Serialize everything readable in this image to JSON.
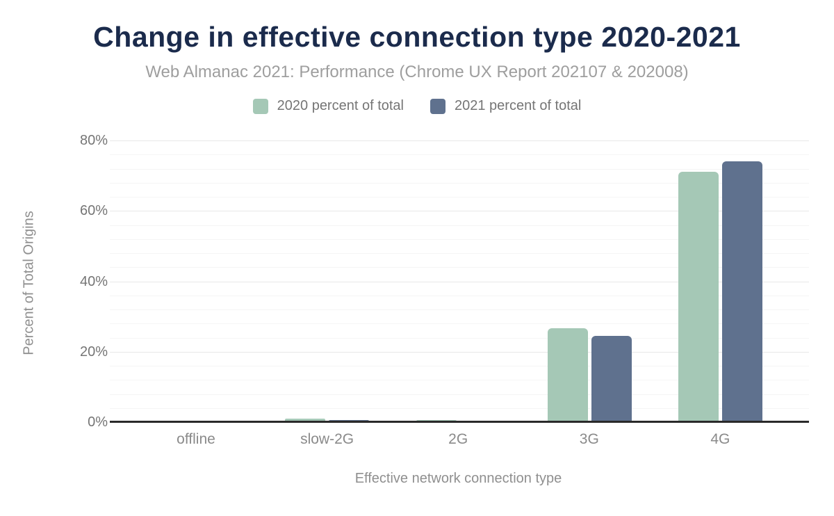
{
  "chart_data": {
    "type": "bar",
    "title": "Change in effective connection type 2020-2021",
    "subtitle": "Web Almanac 2021: Performance (Chrome UX Report 202107 & 202008)",
    "xlabel": "Effective network connection type",
    "ylabel": "Percent of Total Origins",
    "categories": [
      "offline",
      "slow-2G",
      "2G",
      "3G",
      "4G"
    ],
    "series": [
      {
        "name": "2020 percent of total",
        "color": "#a5c8b6",
        "values": [
          0,
          1.0,
          0.5,
          26.7,
          71.2
        ]
      },
      {
        "name": "2021 percent of total",
        "color": "#5f718e",
        "values": [
          0,
          0.6,
          0.2,
          24.5,
          74.0
        ]
      }
    ],
    "ylim": [
      0,
      80
    ],
    "yticks": [
      "0%",
      "20%",
      "40%",
      "60%",
      "80%"
    ],
    "minor_grid_step_percent": 4,
    "major_grid_step_percent": 20,
    "grid": true,
    "legend_position": "top",
    "colors": {
      "title": "#1b2b4c",
      "subtitle": "#9e9e9e",
      "axis_text": "#757575",
      "axis_line": "#2a2a2a",
      "major_grid": "#e8e8e8",
      "minor_grid": "#f5f5f5",
      "background": "#ffffff"
    }
  }
}
